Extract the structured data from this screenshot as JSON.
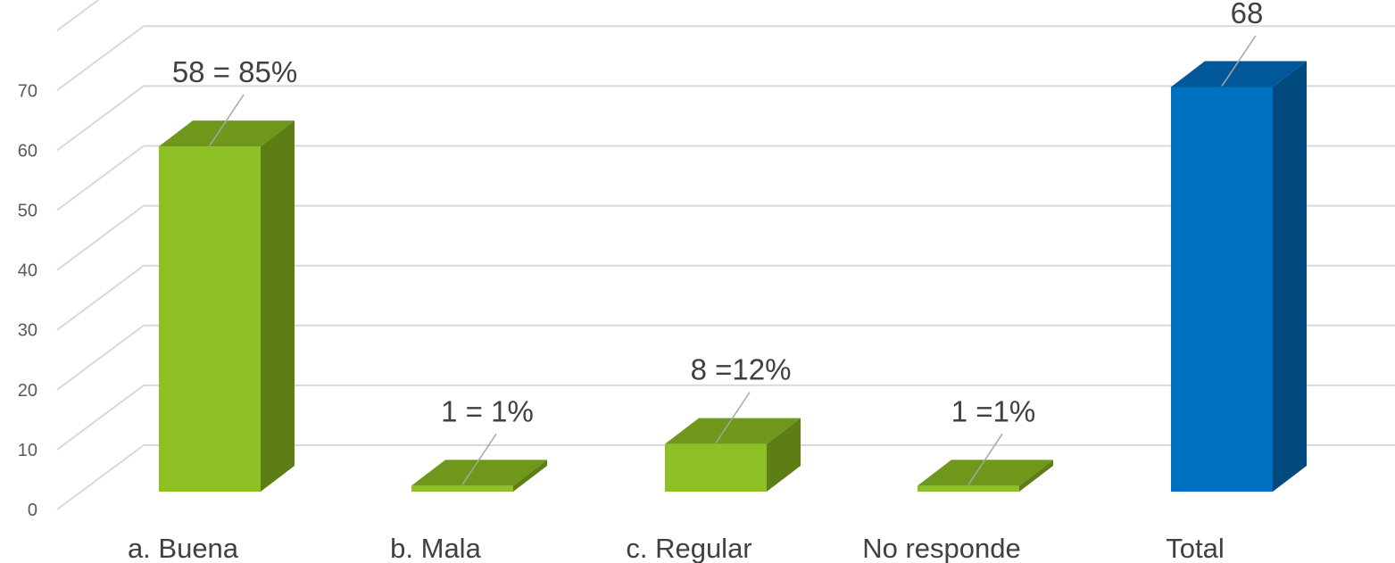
{
  "chart_data": {
    "type": "bar",
    "categories": [
      "a. Buena",
      "b. Mala",
      "c. Regular",
      "No responde",
      "Total"
    ],
    "values": [
      58,
      1,
      8,
      1,
      68
    ],
    "data_labels": [
      "58 = 85%",
      "1 = 1%",
      "8 =12%",
      "1 =1%",
      "68"
    ],
    "yticks": [
      0,
      10,
      20,
      30,
      40,
      50,
      60,
      70
    ],
    "ylim": [
      0,
      70
    ],
    "grid": true,
    "style": "3d-column",
    "colors": {
      "green_front": "#8dc024",
      "green_top": "#6e971c",
      "green_side": "#5c7e15",
      "blue_front": "#0070c0",
      "blue_top": "#00589b",
      "blue_side": "#004a80",
      "grid": "#d9d9d9",
      "leader": "#a6a6a6"
    }
  }
}
